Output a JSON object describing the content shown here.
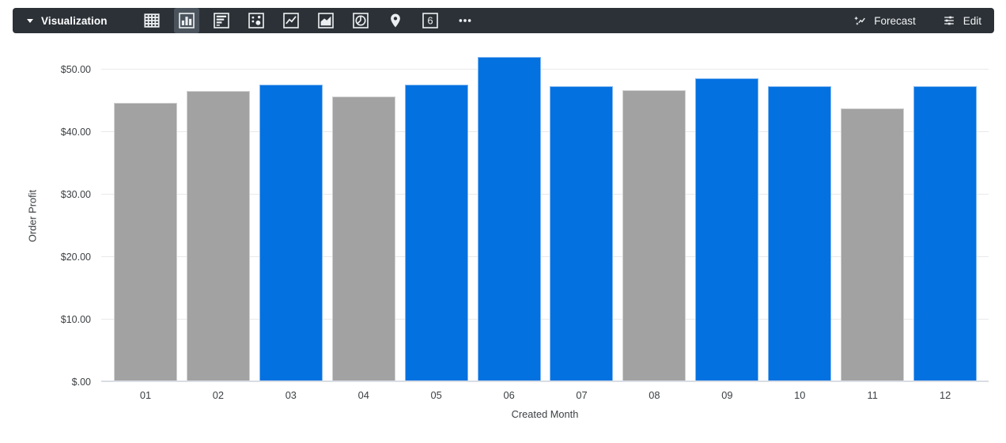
{
  "toolbar": {
    "title": "Visualization",
    "chart_types": [
      {
        "id": "table",
        "icon": "table-icon"
      },
      {
        "id": "column",
        "icon": "column-chart-icon"
      },
      {
        "id": "bar",
        "icon": "bar-chart-icon"
      },
      {
        "id": "scatter",
        "icon": "scatter-chart-icon"
      },
      {
        "id": "line",
        "icon": "line-chart-icon"
      },
      {
        "id": "area",
        "icon": "area-chart-icon"
      },
      {
        "id": "pie",
        "icon": "pie-chart-icon"
      },
      {
        "id": "map",
        "icon": "map-pin-icon"
      },
      {
        "id": "single-value",
        "icon": "single-value-icon"
      },
      {
        "id": "more",
        "icon": "ellipsis-icon"
      }
    ],
    "active_type": "column",
    "single_value_glyph": "6",
    "forecast_label": "Forecast",
    "edit_label": "Edit",
    "bg_color": "#2b3137",
    "active_bg_color": "#4b545d"
  },
  "chart_data": {
    "type": "bar",
    "title": "",
    "xlabel": "Created Month",
    "ylabel": "Order Profit",
    "categories": [
      "01",
      "02",
      "03",
      "04",
      "05",
      "06",
      "07",
      "08",
      "09",
      "10",
      "11",
      "12"
    ],
    "values": [
      44.6,
      46.5,
      47.6,
      45.7,
      47.6,
      52.0,
      47.3,
      46.7,
      48.6,
      47.3,
      43.8,
      47.3
    ],
    "bar_color_keys": [
      "gray",
      "gray",
      "blue",
      "gray",
      "blue",
      "blue",
      "blue",
      "gray",
      "blue",
      "blue",
      "gray",
      "blue"
    ],
    "palette": {
      "blue": "#0471E0",
      "gray": "#A2A2A2"
    },
    "ylim": [
      0,
      53
    ],
    "yticks": [
      {
        "value": 0,
        "label": "$.00"
      },
      {
        "value": 10,
        "label": "$10.00"
      },
      {
        "value": 20,
        "label": "$20.00"
      },
      {
        "value": 30,
        "label": "$30.00"
      },
      {
        "value": 40,
        "label": "$40.00"
      },
      {
        "value": 50,
        "label": "$50.00"
      }
    ],
    "grid": true,
    "legend": false
  }
}
